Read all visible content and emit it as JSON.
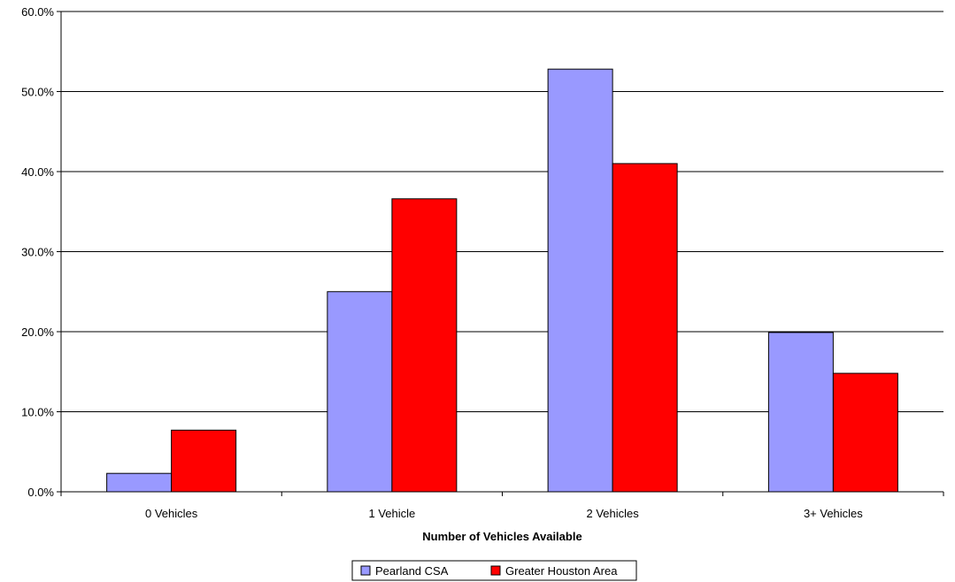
{
  "chart_data": {
    "type": "bar",
    "title": "",
    "xlabel": "Number of Vehicles Available",
    "ylabel": "",
    "categories": [
      "0 Vehicles",
      "1 Vehicle",
      "2 Vehicles",
      "3+ Vehicles"
    ],
    "series": [
      {
        "name": "Pearland CSA",
        "color": "#9999ff",
        "values": [
          2.3,
          25.0,
          52.8,
          19.9
        ]
      },
      {
        "name": "Greater Houston Area",
        "color": "#ff0000",
        "values": [
          7.7,
          36.6,
          41.0,
          14.8
        ]
      }
    ],
    "ylim": [
      0,
      60
    ],
    "yticks": [
      0,
      10,
      20,
      30,
      40,
      50,
      60
    ],
    "ytick_labels": [
      "0.0%",
      "10.0%",
      "20.0%",
      "30.0%",
      "40.0%",
      "50.0%",
      "60.0%"
    ],
    "grid": true,
    "legend_position": "bottom"
  }
}
